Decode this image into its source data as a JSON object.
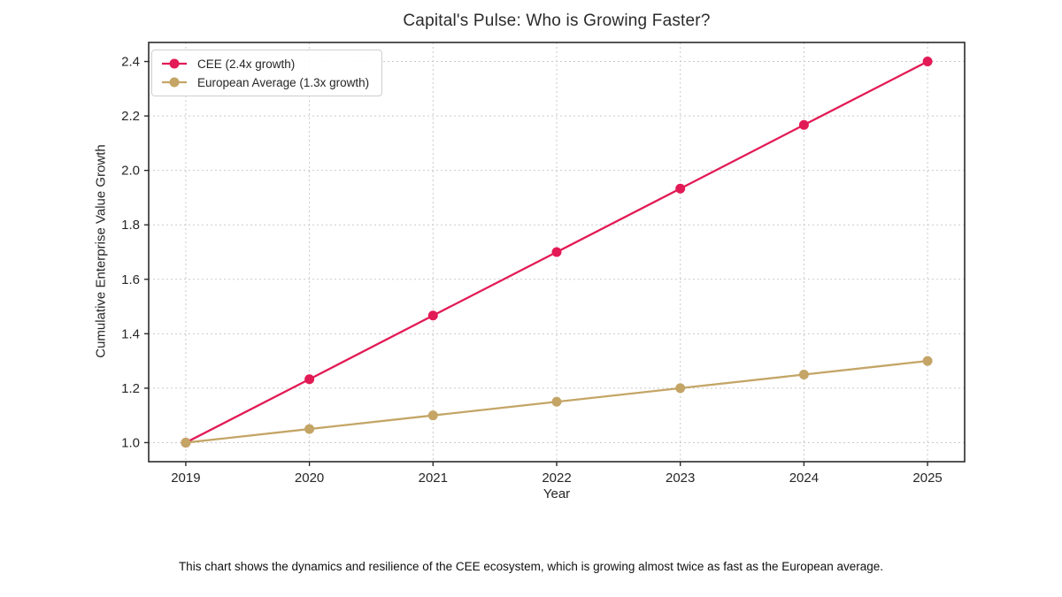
{
  "caption": "This chart shows the dynamics and resilience of the CEE ecosystem, which is growing almost twice as fast as the European average.",
  "chart_data": {
    "type": "line",
    "title": "Capital's Pulse: Who is Growing Faster?",
    "xlabel": "Year",
    "ylabel": "Cumulative Enterprise Value Growth",
    "x": [
      2019,
      2020,
      2021,
      2022,
      2023,
      2024,
      2025
    ],
    "x_ticks": [
      2019,
      2020,
      2021,
      2022,
      2023,
      2024,
      2025
    ],
    "y_ticks": [
      1.0,
      1.2,
      1.4,
      1.6,
      1.8,
      2.0,
      2.2,
      2.4
    ],
    "xlim": [
      2018.7,
      2025.3
    ],
    "ylim": [
      0.93,
      2.47
    ],
    "grid": true,
    "legend_position": "upper left",
    "axis_color": "#2b2b2b",
    "grid_color": "#c9c9c9",
    "tick_text_color": "#262626",
    "series": [
      {
        "name": "CEE (2.4x growth)",
        "slug": "cee",
        "color": "#E21A55",
        "values": [
          1.0,
          1.233,
          1.467,
          1.7,
          1.933,
          2.167,
          2.4
        ]
      },
      {
        "name": "European Average (1.3x growth)",
        "slug": "european-average",
        "color": "#C4A566",
        "values": [
          1.0,
          1.05,
          1.1,
          1.15,
          1.2,
          1.25,
          1.3
        ]
      }
    ]
  }
}
